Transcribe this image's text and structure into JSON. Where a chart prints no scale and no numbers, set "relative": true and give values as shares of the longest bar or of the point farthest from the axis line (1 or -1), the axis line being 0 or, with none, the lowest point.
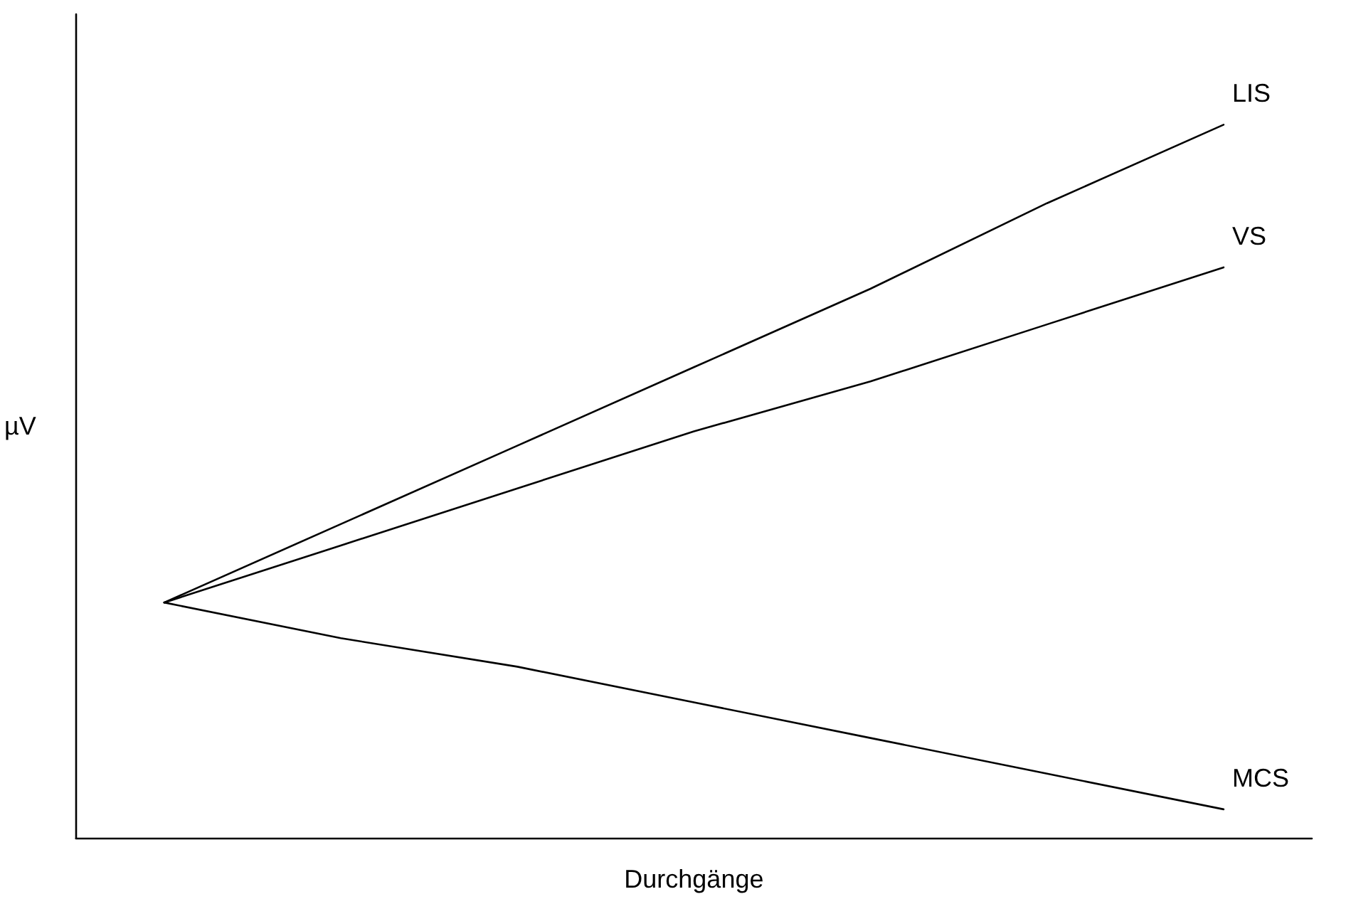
{
  "chart_data": {
    "type": "line",
    "xlabel": "Durchgänge",
    "ylabel": "µV",
    "relative": true,
    "grid": false,
    "legend": false,
    "marker": "none",
    "line_style": "solid",
    "categories": [
      null,
      null,
      null,
      null,
      null,
      null,
      null
    ],
    "series": [
      {
        "name": "LIS",
        "color": "#000000",
        "values": [
          0.33,
          0.44,
          0.55,
          0.66,
          0.77,
          0.89,
          1.0
        ]
      },
      {
        "name": "VS",
        "color": "#000000",
        "values": [
          0.33,
          0.41,
          0.49,
          0.57,
          0.64,
          0.72,
          0.8
        ]
      },
      {
        "name": "MCS",
        "color": "#000000",
        "values": [
          0.33,
          0.28,
          0.24,
          0.19,
          0.14,
          0.09,
          0.04
        ]
      }
    ]
  }
}
